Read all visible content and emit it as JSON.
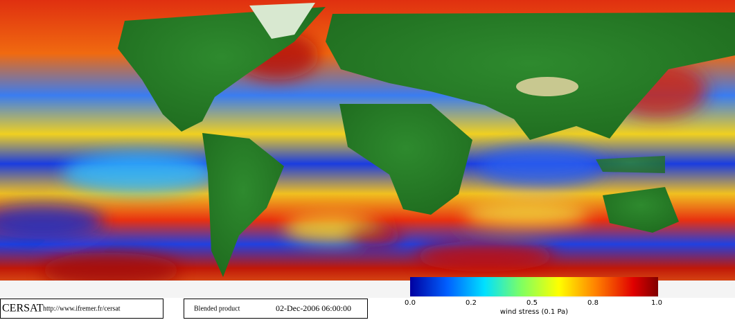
{
  "logo": "CERSAT",
  "url": "http://www.ifremer.fr/cersat",
  "product": "Blended product",
  "date": "02-Dec-2006 06:00:00",
  "colorbar": {
    "ticks": [
      "0.0",
      "0.2",
      "0.5",
      "0.8",
      "1.0"
    ],
    "label": "wind stress (0.1 Pa)"
  }
}
